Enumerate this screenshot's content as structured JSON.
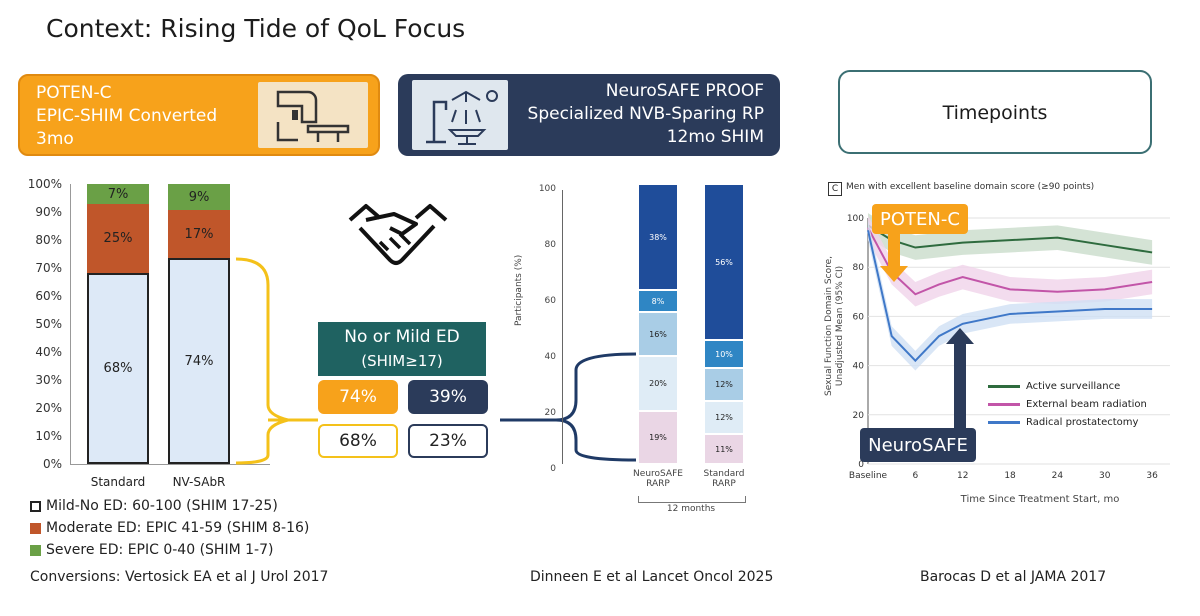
{
  "title": "Context: Rising Tide of QoL Focus",
  "headers": {
    "poten": {
      "line1": "POTEN-C",
      "line2": "EPIC-SHIM Converted",
      "line3": "3mo",
      "icon": "radiotherapy-machine-icon"
    },
    "neurosafe": {
      "line1": "NeuroSAFE PROOF",
      "line2": "Specialized NVB-Sparing RP",
      "line3": "12mo SHIM",
      "icon": "surgical-robot-icon"
    },
    "timepoints": {
      "label": "Timepoints"
    }
  },
  "left_chart": {
    "y_ticks": [
      "100%",
      "90%",
      "80%",
      "70%",
      "60%",
      "50%",
      "40%",
      "30%",
      "20%",
      "10%",
      "0%"
    ],
    "categories": [
      "Standard",
      "NV-SAbR"
    ],
    "mild_labels": [
      "68%",
      "74%"
    ],
    "moderate_labels": [
      "25%",
      "17%"
    ],
    "severe_labels": [
      "7%",
      "9%"
    ]
  },
  "legend": {
    "mild": "Mild-No ED: 60-100 (SHIM 17-25)",
    "moderate": "Moderate ED: EPIC 41-59 (SHIM 8-16)",
    "severe": "Severe ED: EPIC 0-40 (SHIM 1-7)"
  },
  "colors": {
    "orange": "#f7a21b",
    "navy": "#2b3b5a",
    "teal": "#1f6261",
    "mild": "#dde9f7",
    "moderate": "#c0562a",
    "severe": "#6aa046",
    "yellow": "#f4c11a"
  },
  "handshake_icon": "handshake-icon",
  "ed_summary": {
    "heading1": "No or Mild ED",
    "heading2": "(SHIM≥17)",
    "poten_sabr": "74%",
    "neurosafe": "39%",
    "standard_rt": "68%",
    "standard_rp": "23%"
  },
  "mid_chart": {
    "ylabel": "Participants (%)",
    "y_ticks": [
      "100",
      "80",
      "60",
      "40",
      "20",
      "0"
    ],
    "bar1_label1": "NeuroSAFE",
    "bar1_label2": "RARP",
    "bar2_label1": "Standard",
    "bar2_label2": "RARP",
    "group_label": "12 months",
    "bar1_segments": [
      "19%",
      "20%",
      "16%",
      "8%",
      "38%"
    ],
    "bar2_segments": [
      "11%",
      "12%",
      "12%",
      "10%",
      "56%"
    ]
  },
  "right_chart": {
    "panel_letter": "C",
    "subtitle": "Men with excellent baseline domain score (≥90 points)",
    "ylabel1": "Sexual Function Domain Score,",
    "ylabel2": "Unadjusted Mean (95% CI)",
    "y_ticks": [
      "100",
      "80",
      "60",
      "40",
      "20",
      "0"
    ],
    "x_ticks": [
      "Baseline",
      "6",
      "12",
      "18",
      "24",
      "30",
      "36"
    ],
    "xlabel": "Time Since Treatment Start, mo",
    "series_labels": [
      "Active surveillance",
      "External beam radiation",
      "Radical prostatectomy"
    ],
    "series_colors": [
      "#2e6b3e",
      "#c255a8",
      "#3f78c8"
    ],
    "callout_poten": "POTEN-C",
    "callout_neurosafe": "NeuroSAFE"
  },
  "citations": {
    "left": "Conversions: Vertosick EA et al J Urol 2017",
    "middle": "Dinneen E et al Lancet Oncol 2025",
    "right": "Barocas D et al JAMA 2017"
  }
}
